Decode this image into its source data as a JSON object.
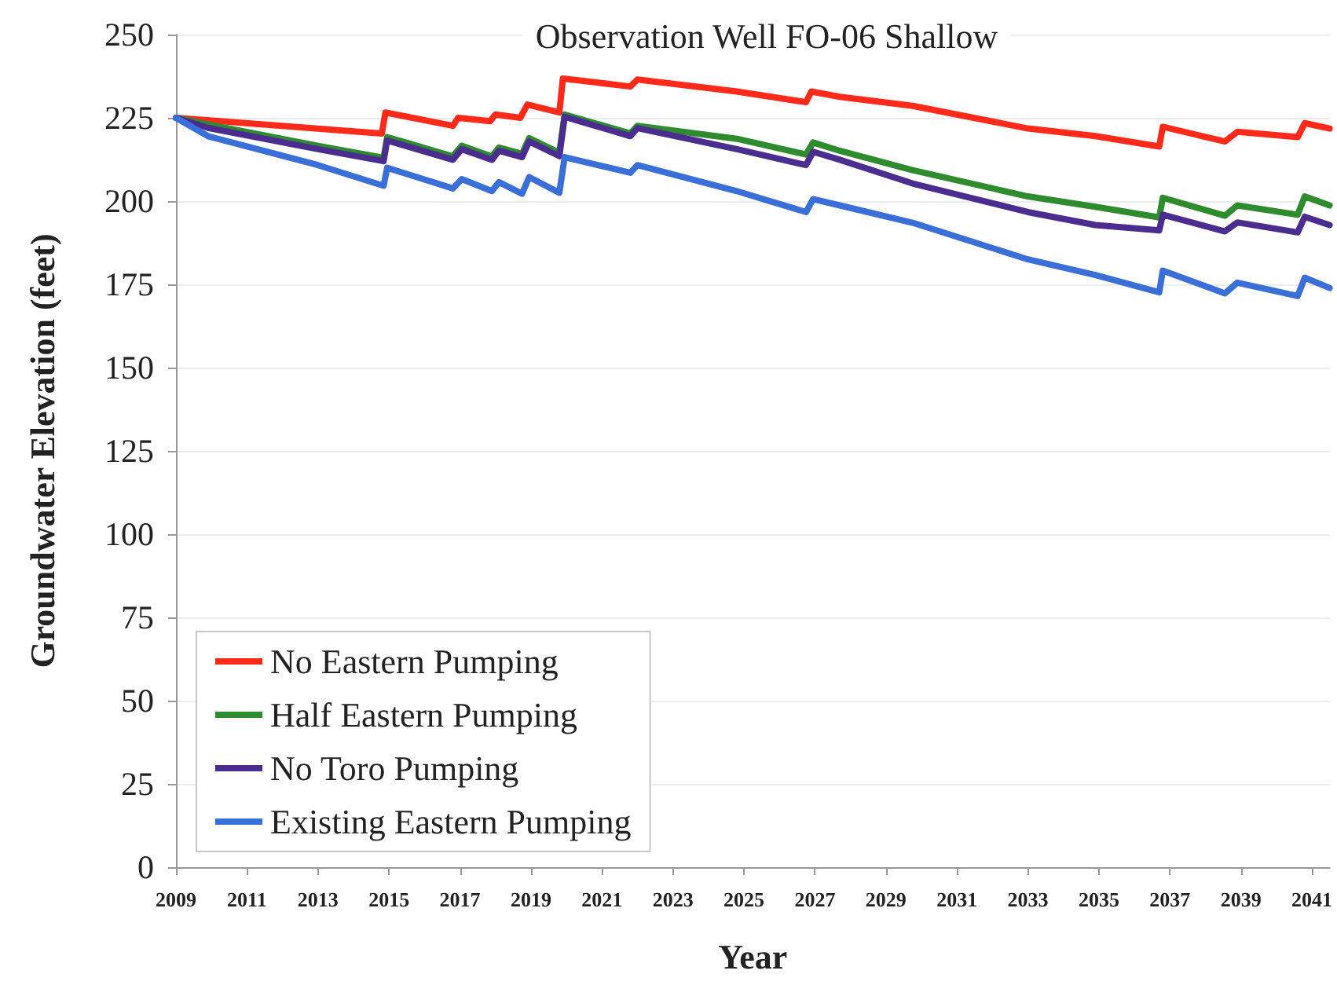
{
  "chart_data": {
    "type": "line",
    "title": "Observation Well FO-06 Shallow",
    "xlabel": "Year",
    "ylabel": "Groundwater Elevation (feet)",
    "xlim": [
      2009,
      2041.5
    ],
    "xticks": [
      2009,
      2011,
      2013,
      2015,
      2017,
      2019,
      2021,
      2023,
      2025,
      2027,
      2029,
      2031,
      2033,
      2035,
      2037,
      2039,
      2041
    ],
    "ylim": [
      0,
      250
    ],
    "yticks": [
      0,
      25,
      50,
      75,
      100,
      125,
      150,
      175,
      200,
      225,
      250
    ],
    "grid": "y",
    "legend": "bottom left",
    "marker": "none",
    "line_style": "solid",
    "series": [
      {
        "name": "No Eastern Pumping",
        "color": "#ff2a1a",
        "x": [
          2009,
          2014.8,
          2014.9,
          2016.8,
          2016.95,
          2017.85,
          2018.0,
          2018.7,
          2018.9,
          2019.8,
          2019.9,
          2021.8,
          2022.0,
          2024.8,
          2026.75,
          2026.9,
          2027.7,
          2029.75,
          2033.0,
          2034.9,
          2036.7,
          2036.8,
          2038.55,
          2038.9,
          2040.6,
          2040.8,
          2041.5
        ],
        "values": [
          225,
          220.3,
          226.6,
          222.6,
          225,
          224,
          226,
          225,
          229,
          226.6,
          236.8,
          234.4,
          236.5,
          232.9,
          229.7,
          232.9,
          231.3,
          228.6,
          221.8,
          219.5,
          216.4,
          222.3,
          217.9,
          220.8,
          219.2,
          223.4,
          221.8
        ]
      },
      {
        "name": "Half Eastern Pumping",
        "color": "#2e8b2e",
        "x": [
          2009,
          2009.9,
          2013.0,
          2014.85,
          2014.95,
          2016.8,
          2017.05,
          2017.9,
          2018.1,
          2018.75,
          2018.95,
          2019.8,
          2019.95,
          2021.8,
          2022.0,
          2024.8,
          2026.75,
          2026.95,
          2027.7,
          2029.75,
          2033.0,
          2034.9,
          2036.7,
          2036.8,
          2038.55,
          2038.9,
          2040.6,
          2040.8,
          2041.5
        ],
        "values": [
          225,
          223,
          216.6,
          213,
          219.2,
          213.4,
          216.6,
          213.4,
          216.1,
          214.2,
          218.9,
          214.5,
          226,
          220.3,
          222.6,
          218.7,
          214,
          217.6,
          215.1,
          209.3,
          201.4,
          198.3,
          195.1,
          201,
          195.6,
          198.7,
          195.9,
          201.4,
          198.7
        ]
      },
      {
        "name": "No Toro Pumping",
        "color": "#4b2d8f",
        "x": [
          2009,
          2009.9,
          2013.0,
          2014.85,
          2014.95,
          2016.8,
          2017.05,
          2017.9,
          2018.1,
          2018.75,
          2018.95,
          2019.8,
          2019.95,
          2021.8,
          2022.0,
          2024.8,
          2026.75,
          2026.95,
          2027.7,
          2029.75,
          2033.0,
          2034.9,
          2036.7,
          2036.8,
          2038.55,
          2038.9,
          2040.6,
          2040.8,
          2041.5
        ],
        "values": [
          225,
          222,
          215.6,
          212,
          218.2,
          212.4,
          215.6,
          212.4,
          215.1,
          213.2,
          217.9,
          213.5,
          225.3,
          219.5,
          221.9,
          215.6,
          210.8,
          214.8,
          212.4,
          205.3,
          196.7,
          192.8,
          191.2,
          195.9,
          190.9,
          193.6,
          190.6,
          195.3,
          192.8
        ]
      },
      {
        "name": "Existing Eastern Pumping",
        "color": "#3a6fd8",
        "x": [
          2009,
          2009.9,
          2013.0,
          2014.85,
          2014.95,
          2016.8,
          2017.05,
          2017.9,
          2018.1,
          2018.75,
          2018.95,
          2019.8,
          2019.95,
          2021.8,
          2022.0,
          2024.8,
          2026.75,
          2026.95,
          2027.7,
          2029.75,
          2033.0,
          2034.9,
          2036.7,
          2036.8,
          2038.55,
          2038.9,
          2040.6,
          2040.8,
          2041.5
        ],
        "values": [
          225,
          219.5,
          210.8,
          204.6,
          210,
          203.8,
          206.6,
          203,
          205.7,
          202.2,
          207.2,
          202.5,
          213.2,
          208.5,
          210.8,
          203,
          196.7,
          200.6,
          198.7,
          193.5,
          182.5,
          177.8,
          172.6,
          179.1,
          172.3,
          175.5,
          171.5,
          177,
          173.9
        ]
      }
    ]
  }
}
